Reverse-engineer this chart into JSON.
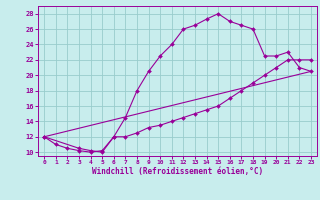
{
  "xlabel": "Windchill (Refroidissement éolien,°C)",
  "xlim": [
    -0.5,
    23.5
  ],
  "ylim": [
    9.5,
    29
  ],
  "xticks": [
    0,
    1,
    2,
    3,
    4,
    5,
    6,
    7,
    8,
    9,
    10,
    11,
    12,
    13,
    14,
    15,
    16,
    17,
    18,
    19,
    20,
    21,
    22,
    23
  ],
  "yticks": [
    10,
    12,
    14,
    16,
    18,
    20,
    22,
    24,
    26,
    28
  ],
  "bg_color": "#c8eded",
  "line_color": "#990099",
  "grid_color": "#99cccc",
  "curve1_x": [
    0,
    1,
    2,
    3,
    4,
    5,
    6,
    7,
    8,
    9,
    10,
    11,
    12,
    13,
    14,
    15,
    16,
    17,
    18,
    19,
    20,
    21,
    22,
    23
  ],
  "curve1_y": [
    12,
    11,
    10.5,
    10.2,
    10,
    10.2,
    12,
    14.5,
    18,
    20.5,
    22.5,
    24,
    26,
    26.5,
    27.3,
    28,
    27,
    26.5,
    26,
    22.5,
    22.5,
    23,
    21,
    20.5
  ],
  "curve2_x": [
    0,
    3,
    4,
    5,
    6,
    7,
    8,
    9,
    10,
    11,
    12,
    13,
    14,
    15,
    16,
    17,
    18,
    19,
    20,
    21,
    22,
    23
  ],
  "curve2_y": [
    12,
    10.5,
    10.2,
    10.0,
    12,
    12,
    12.5,
    13.2,
    13.5,
    14,
    14.5,
    15.0,
    15.5,
    16.0,
    17.0,
    18.0,
    19.0,
    20.0,
    21.0,
    22.0,
    22.0,
    22.0
  ],
  "curve3_x": [
    0,
    23
  ],
  "curve3_y": [
    12,
    20.5
  ]
}
